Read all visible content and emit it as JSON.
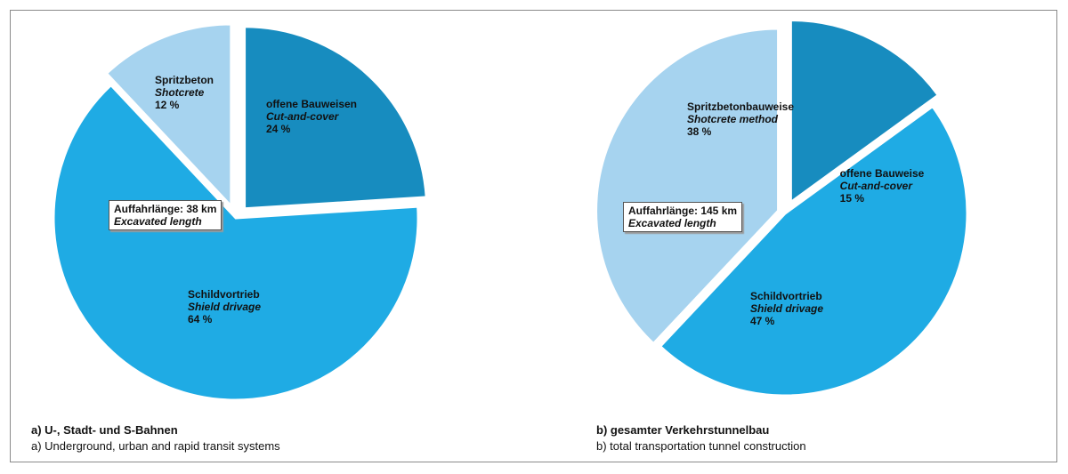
{
  "colors": {
    "cut_and_cover": "#178cbf",
    "shotcrete": "#a6d3ef",
    "shield": "#1fabe4",
    "gap": "#ffffff"
  },
  "chart_data": [
    {
      "type": "pie",
      "slices": [
        {
          "name_de": "offene Bauweisen",
          "name_en": "Cut-and-cover",
          "value": 24,
          "label": "24 %",
          "color_key": "cut_and_cover"
        },
        {
          "name_de": "Schildvortrieb",
          "name_en": "Shield drivage",
          "value": 64,
          "label": "64 %",
          "color_key": "shield"
        },
        {
          "name_de": "Spritzbeton",
          "name_en": "Shotcrete",
          "value": 12,
          "label": "12 %",
          "color_key": "shotcrete"
        }
      ],
      "box": {
        "de": "Auffahrlänge: 38 km",
        "en": "Excavated length"
      },
      "caption": {
        "de": "a) U-, Stadt- und S-Bahnen",
        "en": "a) Underground, urban and rapid transit systems"
      }
    },
    {
      "type": "pie",
      "slices": [
        {
          "name_de": "offene Bauweise",
          "name_en": "Cut-and-cover",
          "value": 15,
          "label": "15 %",
          "color_key": "cut_and_cover"
        },
        {
          "name_de": "Schildvortrieb",
          "name_en": "Shield drivage",
          "value": 47,
          "label": "47 %",
          "color_key": "shield"
        },
        {
          "name_de": "Spritzbetonbauweise",
          "name_en": "Shotcrete method",
          "value": 38,
          "label": "38 %",
          "color_key": "shotcrete"
        }
      ],
      "box": {
        "de": "Auffahrlänge: 145 km",
        "en": "Excavated length"
      },
      "caption": {
        "de": "b) gesamter Verkehrstunnelbau",
        "en": "b) total transportation tunnel construction"
      }
    }
  ]
}
